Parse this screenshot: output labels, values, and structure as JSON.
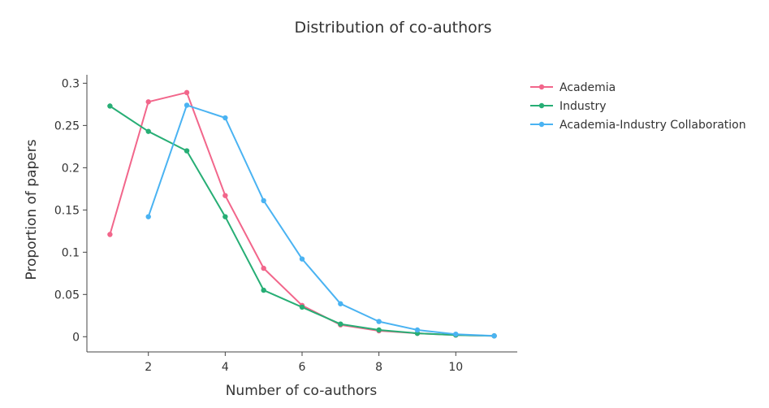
{
  "chart_data": {
    "type": "line",
    "title": "Distribution of co-authors",
    "xlabel": "Number of co-authors",
    "ylabel": "Proportion of papers",
    "xlim": [
      0.4,
      11.6
    ],
    "ylim": [
      -0.018,
      0.31
    ],
    "x_ticks": [
      2,
      4,
      6,
      8,
      10
    ],
    "x_tick_labels": [
      "2",
      "4",
      "6",
      "8",
      "10"
    ],
    "y_ticks": [
      0,
      0.05,
      0.1,
      0.15,
      0.2,
      0.25,
      0.3
    ],
    "y_tick_labels": [
      "0",
      "0.05",
      "0.1",
      "0.15",
      "0.2",
      "0.25",
      "0.3"
    ],
    "grid": false,
    "legend_position": "top-right",
    "series": [
      {
        "name": "Academia",
        "color": "#f2668b",
        "x": [
          1,
          2,
          3,
          4,
          5,
          6,
          7,
          8,
          9,
          10,
          11
        ],
        "y": [
          0.121,
          0.278,
          0.289,
          0.167,
          0.081,
          0.037,
          0.014,
          0.007,
          0.004,
          0.002,
          0.001
        ]
      },
      {
        "name": "Industry",
        "color": "#27ae75",
        "x": [
          1,
          2,
          3,
          4,
          5,
          6,
          7,
          8,
          9,
          10,
          11
        ],
        "y": [
          0.273,
          0.243,
          0.22,
          0.142,
          0.055,
          0.035,
          0.015,
          0.008,
          0.004,
          0.002,
          0.001
        ]
      },
      {
        "name": "Academia-Industry Collaboration",
        "color": "#4ab3f2",
        "x": [
          2,
          3,
          4,
          5,
          6,
          7,
          8,
          9,
          10,
          11
        ],
        "y": [
          0.142,
          0.274,
          0.259,
          0.161,
          0.092,
          0.039,
          0.018,
          0.008,
          0.003,
          0.001
        ]
      }
    ]
  }
}
